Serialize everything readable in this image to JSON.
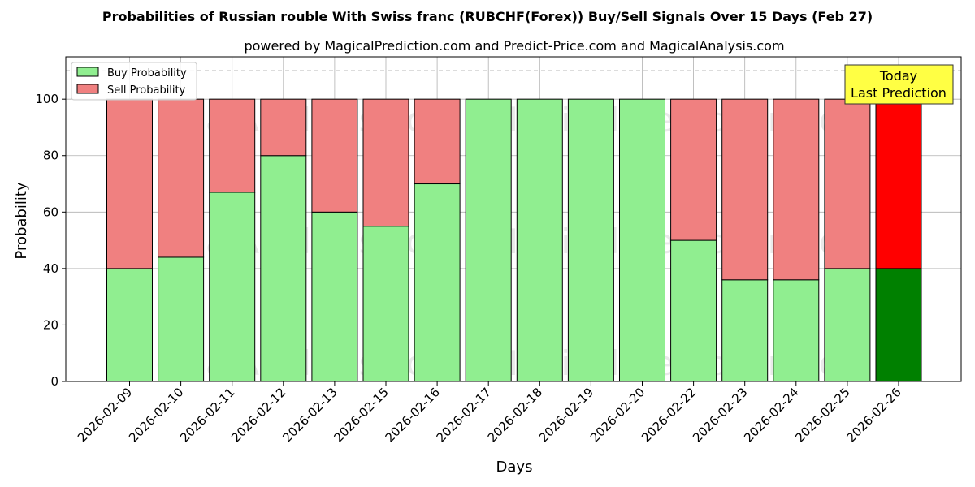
{
  "title": "Probabilities of Russian rouble With Swiss franc (RUBCHF(Forex)) Buy/Sell Signals Over 15 Days (Feb 27)",
  "subtitle": "powered by MagicalPrediction.com and Predict-Price.com and MagicalAnalysis.com",
  "watermarks": [
    "MagicalAnalysis.com",
    "MagicalPrediction.com"
  ],
  "colors": {
    "buy": "#90ee90",
    "sell": "#f08080",
    "buy_today": "#008000",
    "sell_today": "#ff0000",
    "note_bg": "#ffff44"
  },
  "chart_data": {
    "type": "bar",
    "stacked": true,
    "categories": [
      "2026-02-09",
      "2026-02-10",
      "2026-02-11",
      "2026-02-12",
      "2026-02-13",
      "2026-02-15",
      "2026-02-16",
      "2026-02-17",
      "2026-02-18",
      "2026-02-19",
      "2026-02-20",
      "2026-02-22",
      "2026-02-23",
      "2026-02-24",
      "2026-02-25",
      "2026-02-26"
    ],
    "series": [
      {
        "name": "Buy Probability",
        "values": [
          40,
          44,
          67,
          80,
          60,
          55,
          70,
          100,
          100,
          100,
          100,
          50,
          36,
          36,
          40,
          40
        ]
      },
      {
        "name": "Sell Probability",
        "values": [
          60,
          56,
          33,
          20,
          40,
          45,
          30,
          0,
          0,
          0,
          0,
          50,
          64,
          64,
          60,
          60
        ]
      }
    ],
    "xlabel": "Days",
    "ylabel": "Probability",
    "ylim": [
      0,
      115
    ],
    "yticks": [
      0,
      20,
      40,
      60,
      80,
      100
    ],
    "reference_line": 110,
    "grid": true,
    "legend_position": "top-left",
    "highlight_last": true,
    "annotation": {
      "line1": "Today",
      "line2": "Last Prediction",
      "position": "top-right"
    }
  }
}
